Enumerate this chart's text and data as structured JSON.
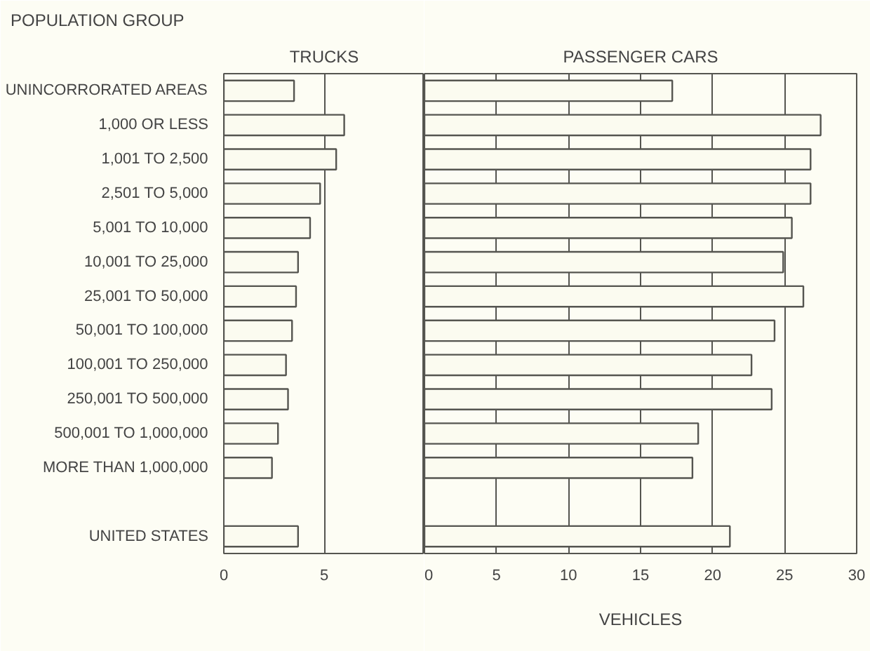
{
  "chart_data": [
    {
      "type": "bar",
      "orientation": "horizontal",
      "title": "TRUCKS",
      "ylabel": "POPULATION GROUP",
      "categories": [
        "UNINCORRORATED AREAS",
        "1,000 OR LESS",
        "1,001 TO 2,500",
        "2,501 TO 5,000",
        "5,001 TO 10,000",
        "10,001 TO 25,000",
        "25,001 TO 50,000",
        "50,001 TO 100,000",
        "100,001 TO 250,000",
        "250,001 TO 500,000",
        "500,001 TO 1,000,000",
        "MORE THAN 1,000,000",
        null,
        "UNITED STATES"
      ],
      "values": [
        3.5,
        6.0,
        5.6,
        4.8,
        4.3,
        3.7,
        3.6,
        3.4,
        3.1,
        3.2,
        2.7,
        2.4,
        null,
        3.7
      ],
      "color": "#fbfbf0",
      "xlim": [
        0,
        10
      ],
      "xticks": [
        0,
        5
      ],
      "grid": "x"
    },
    {
      "type": "bar",
      "orientation": "horizontal",
      "title": "PASSENGER CARS",
      "xlabel": "VEHICLES",
      "values": [
        17.2,
        27.5,
        26.8,
        26.8,
        25.5,
        24.9,
        26.3,
        24.3,
        22.7,
        24.1,
        19.0,
        18.6,
        null,
        21.2
      ],
      "color": "#fbfbf0",
      "xlim": [
        0,
        30
      ],
      "xticks": [
        0,
        5,
        10,
        15,
        20,
        25,
        30
      ],
      "grid": "x",
      "tick_labels": "x"
    }
  ]
}
